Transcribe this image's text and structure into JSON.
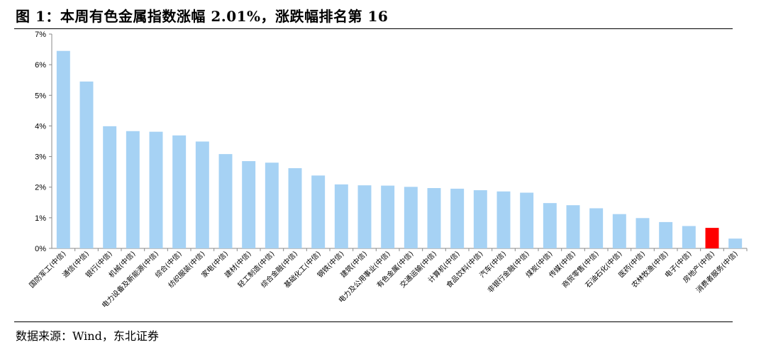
{
  "header": {
    "title": "图 1：本周有色金属指数涨幅 2.01%，涨跌幅排名第 16"
  },
  "footer": {
    "source": "数据来源：Wind，东北证券"
  },
  "chart_data": {
    "type": "bar",
    "title": "",
    "xlabel": "",
    "ylabel": "",
    "ylim": [
      0,
      7
    ],
    "y_ticks": [
      "0%",
      "1%",
      "2%",
      "3%",
      "4%",
      "5%",
      "6%",
      "7%"
    ],
    "grid": false,
    "legend": "none",
    "bar_color": "#a6d2f4",
    "highlight_color": "#ff0000",
    "highlight_index": 28,
    "categories": [
      "国防军工(中信)",
      "通信(中信)",
      "银行(中信)",
      "机械(中信)",
      "电力设备及新能源(中信)",
      "综合(中信)",
      "纺织服装(中信)",
      "家电(中信)",
      "建材(中信)",
      "轻工制造(中信)",
      "综合金融(中信)",
      "基础化工(中信)",
      "钢铁(中信)",
      "建筑(中信)",
      "电力及公用事业(中信)",
      "有色金属(中信)",
      "交通运输(中信)",
      "计算机(中信)",
      "食品饮料(中信)",
      "汽车(中信)",
      "非银行金融(中信)",
      "煤炭(中信)",
      "传媒(中信)",
      "商贸零售(中信)",
      "石油石化(中信)",
      "医药(中信)",
      "农林牧渔(中信)",
      "电子(中信)",
      "房地产(中信)",
      "消费者服务(中信)"
    ],
    "values": [
      6.45,
      5.45,
      3.99,
      3.83,
      3.81,
      3.69,
      3.49,
      3.08,
      2.85,
      2.8,
      2.62,
      2.38,
      2.09,
      2.06,
      2.05,
      2.01,
      1.97,
      1.95,
      1.9,
      1.86,
      1.82,
      1.48,
      1.41,
      1.31,
      1.12,
      0.99,
      0.86,
      0.73,
      0.67,
      0.32
    ]
  }
}
